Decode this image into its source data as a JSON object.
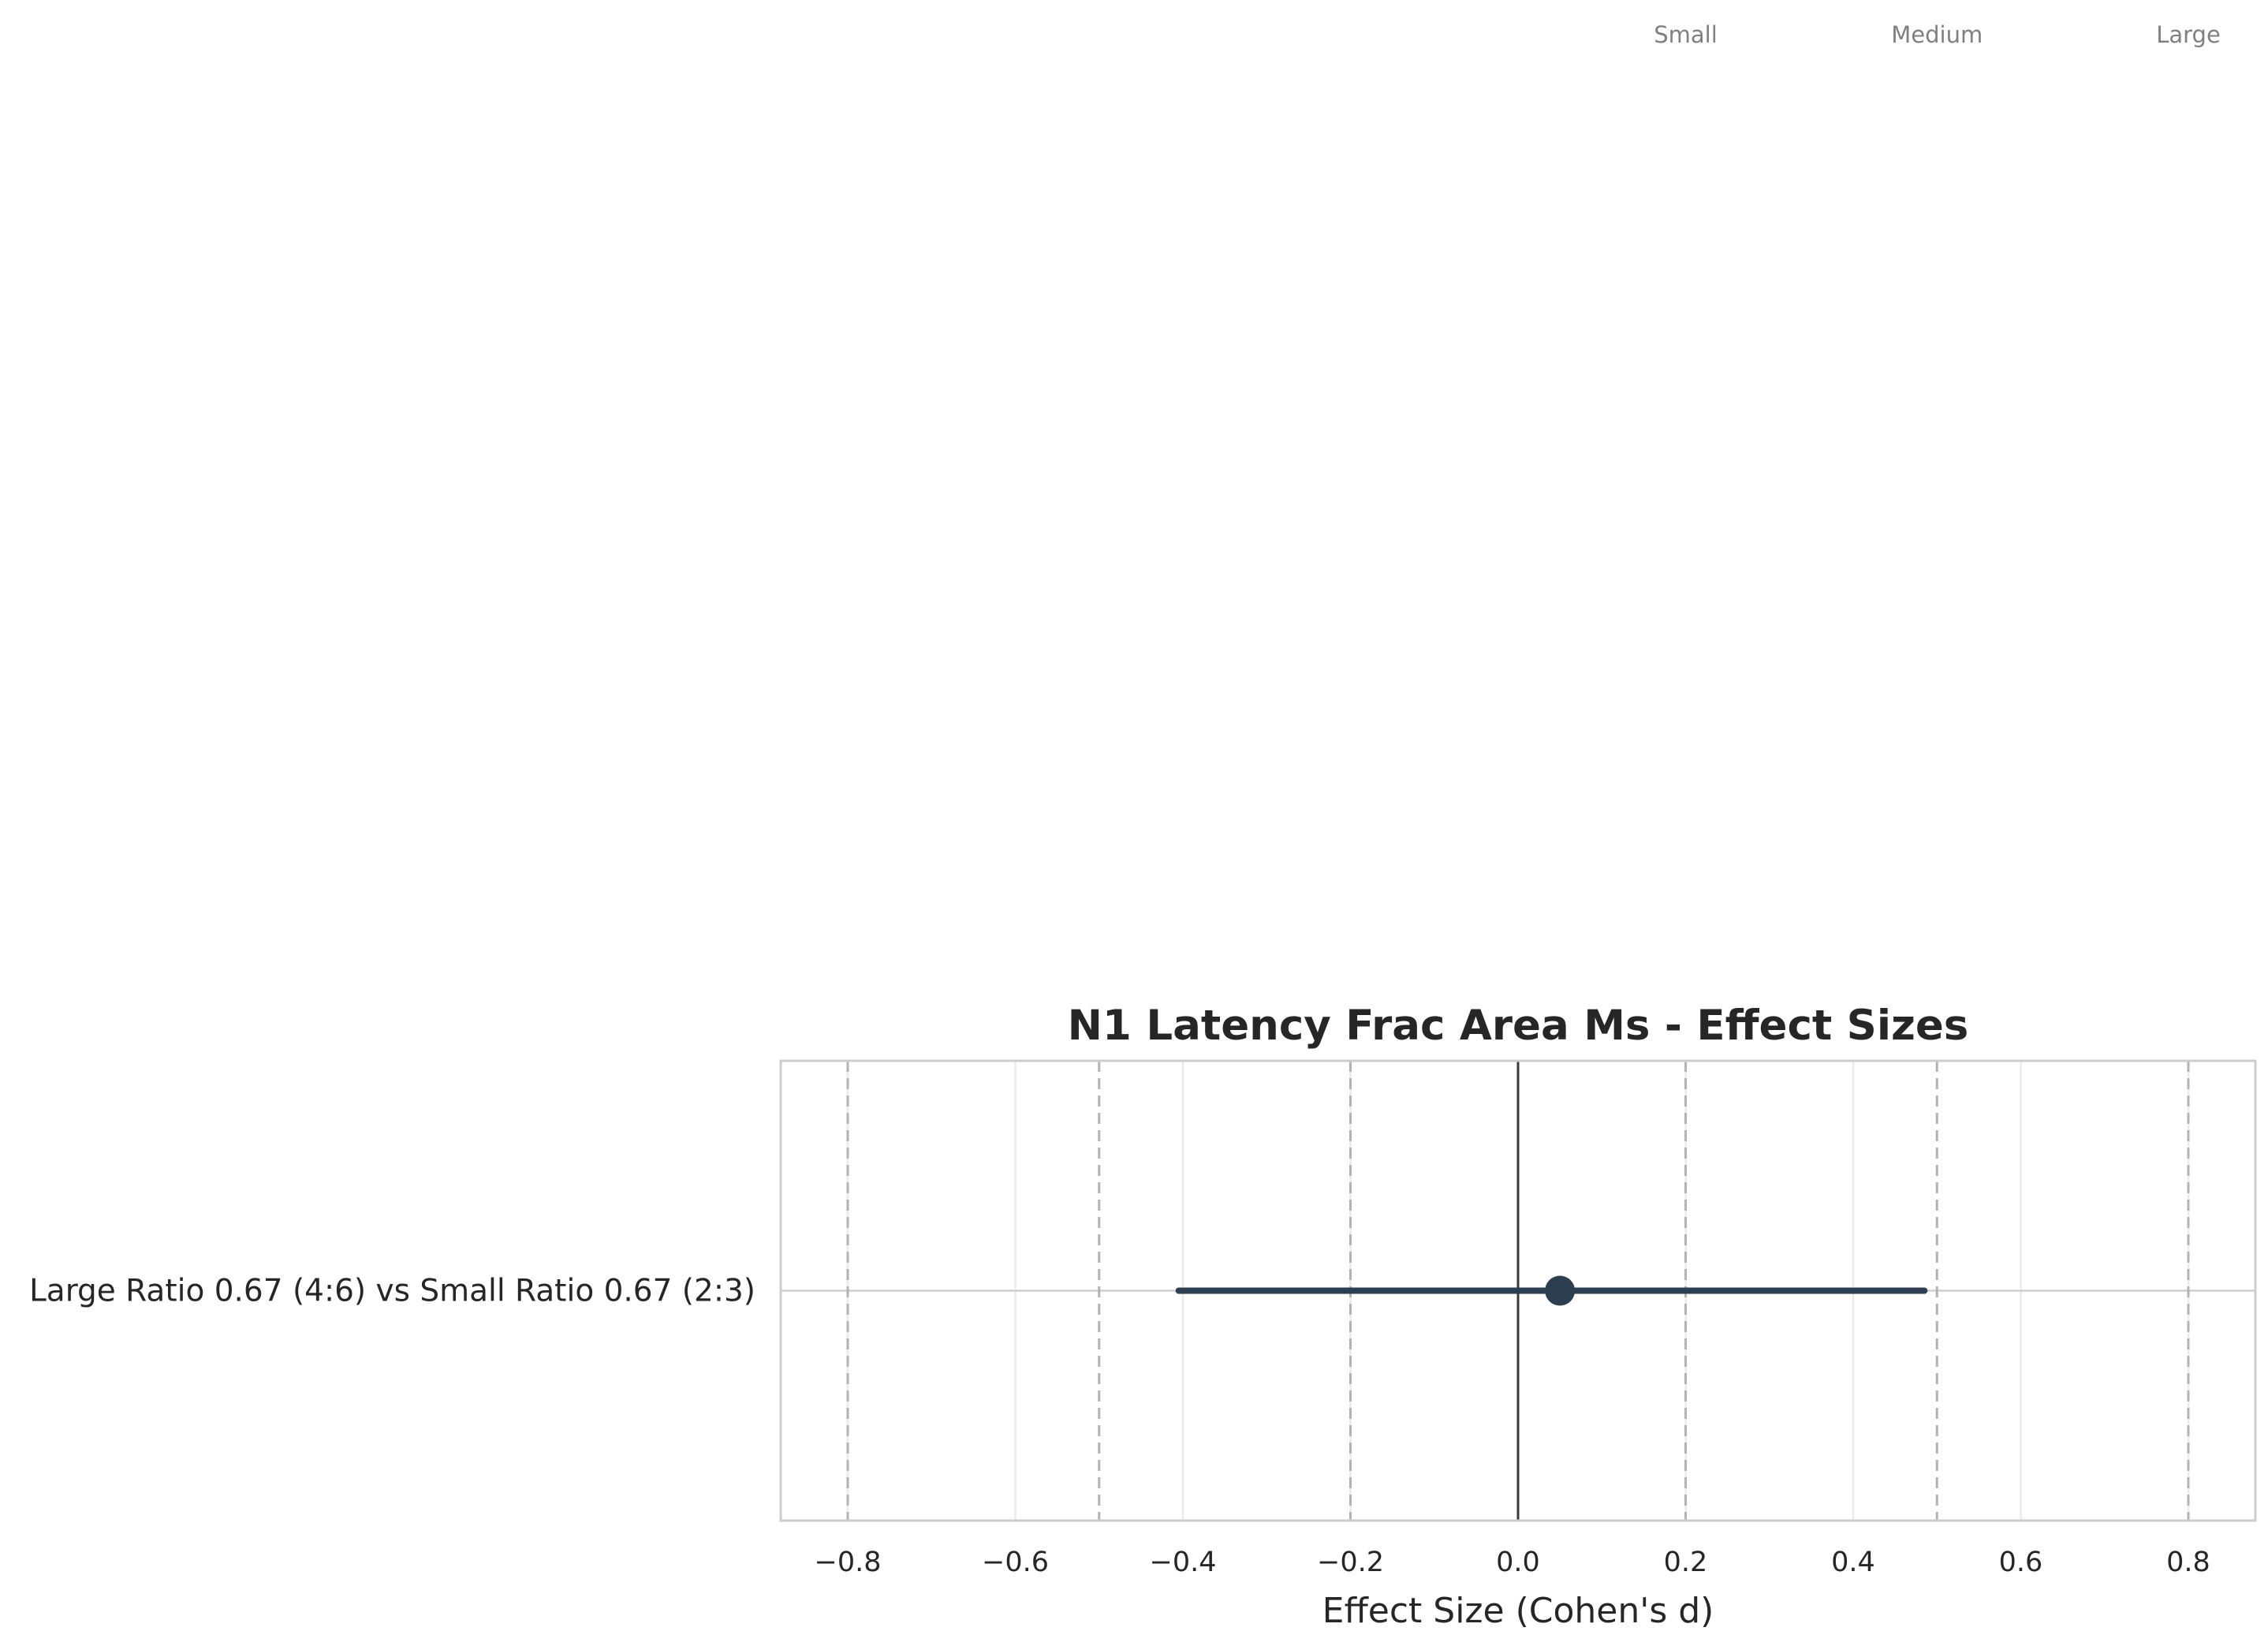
{
  "chart_data": {
    "type": "forest",
    "title": "N1 Latency Frac Area Ms - Effect Sizes",
    "xlabel": "Effect Size (Cohen's d)",
    "ylabel": "",
    "xlim": [
      -0.88,
      0.88
    ],
    "x_ticks": [
      -0.8,
      -0.6,
      -0.4,
      -0.2,
      0.0,
      0.2,
      0.4,
      0.6,
      0.8
    ],
    "x_tick_labels": [
      "−0.8",
      "−0.6",
      "−0.4",
      "−0.2",
      "0.0",
      "0.2",
      "0.4",
      "0.6",
      "0.8"
    ],
    "grid": true,
    "zero_line": 0.0,
    "reference_lines": [
      {
        "value": -0.8,
        "label": ""
      },
      {
        "value": -0.5,
        "label": ""
      },
      {
        "value": -0.2,
        "label": ""
      },
      {
        "value": 0.2,
        "label": "Small"
      },
      {
        "value": 0.5,
        "label": "Medium"
      },
      {
        "value": 0.8,
        "label": "Large"
      }
    ],
    "comparisons": [
      {
        "label": "Large Ratio 0.67 (4:6) vs Small Ratio 0.67 (2:3)",
        "effect": 0.05,
        "ci_low": -0.405,
        "ci_high": 0.485
      }
    ],
    "colors": {
      "point": "#2c3e50",
      "ci": "#2c3e50",
      "reference_line": "#b3b3b3",
      "grid": "#ebebeb",
      "zero_line": "#3a3a3a",
      "axes_edge": "#cccccc"
    }
  }
}
